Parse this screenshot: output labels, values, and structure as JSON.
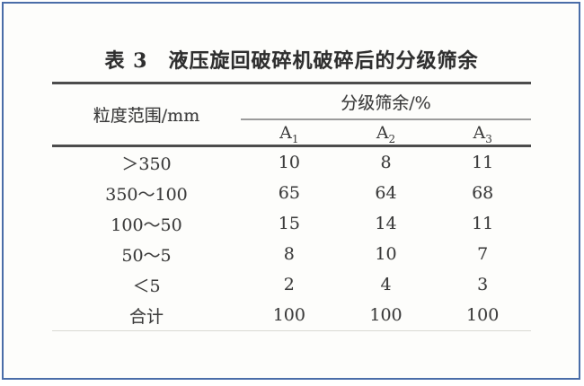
{
  "colors": {
    "frame_border": "#4a6da8",
    "rule_dark": "#4c4c4c",
    "rule_sub": "#9b9b9b",
    "rule_faint": "#d9d9d3",
    "text": "#3c3c3c"
  },
  "table": {
    "title": "表 3　液压旋回破碎机破碎后的分级筛余",
    "col_header": "粒度范围/mm",
    "group_header": "分级筛余/%",
    "columns": [
      {
        "base": "A",
        "sub": "1"
      },
      {
        "base": "A",
        "sub": "2"
      },
      {
        "base": "A",
        "sub": "3"
      }
    ],
    "rows": [
      {
        "label": "＞350",
        "values": [
          "10",
          "8",
          "11"
        ]
      },
      {
        "label": "350～100",
        "values": [
          "65",
          "64",
          "68"
        ]
      },
      {
        "label": "100～50",
        "values": [
          "15",
          "14",
          "11"
        ]
      },
      {
        "label": "50～5",
        "values": [
          "8",
          "10",
          "7"
        ]
      },
      {
        "label": "＜5",
        "values": [
          "2",
          "4",
          "3"
        ]
      },
      {
        "label": "合计",
        "values": [
          "100",
          "100",
          "100"
        ]
      }
    ]
  }
}
